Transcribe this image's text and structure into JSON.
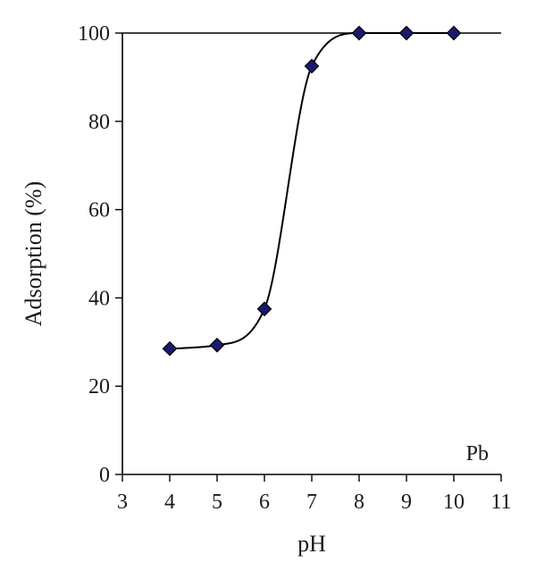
{
  "chart_data": {
    "type": "scatter",
    "xlabel": "pH",
    "ylabel": "Adsorption (%)",
    "xlim": [
      3,
      11
    ],
    "ylim": [
      0,
      100
    ],
    "xticks": [
      3,
      4,
      5,
      6,
      7,
      8,
      9,
      10,
      11
    ],
    "yticks": [
      0,
      20,
      40,
      60,
      80,
      100
    ],
    "annotation": "Pb",
    "annotation_placement": "bottom-right",
    "grid": false,
    "legend": "none",
    "marker": "diamond",
    "marker_color": "#1a1a6e",
    "line_color": "#000000",
    "smoothed_line": true,
    "series": [
      {
        "x": [
          4,
          5,
          6,
          7,
          8,
          9,
          10
        ],
        "y": [
          28.5,
          29.3,
          37.5,
          92.5,
          100,
          100,
          100
        ]
      }
    ]
  }
}
